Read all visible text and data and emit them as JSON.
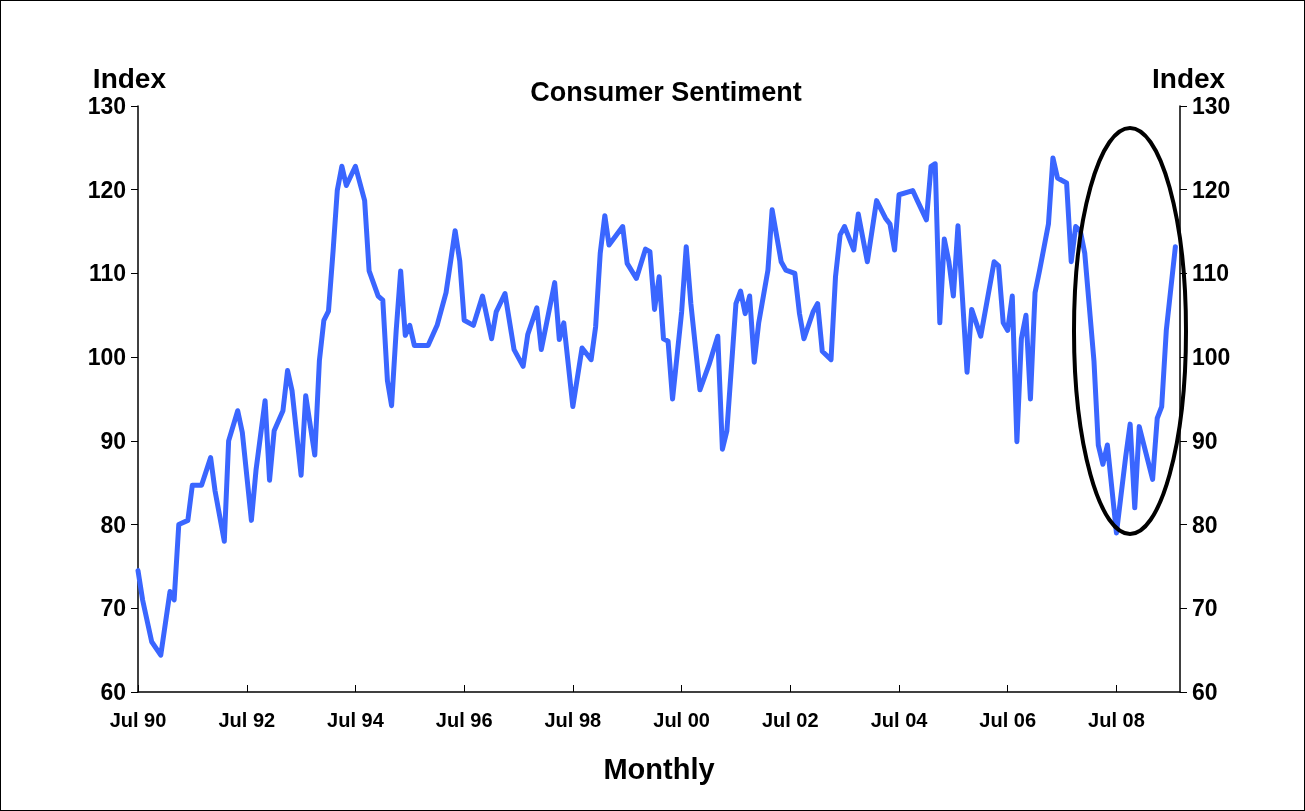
{
  "chart_data": {
    "type": "line",
    "title": "Consumer Sentiment",
    "xlabel": "Monthly",
    "ylabel": "Index",
    "y2label": "Index",
    "x": [
      "1990-07",
      "1990-08",
      "1990-10",
      "1990-12",
      "1991-02",
      "1991-03",
      "1991-04",
      "1991-06",
      "1991-07",
      "1991-09",
      "1991-11",
      "1991-12",
      "1992-02",
      "1992-03",
      "1992-05",
      "1992-06",
      "1992-08",
      "1992-09",
      "1992-11",
      "1992-12",
      "1993-01",
      "1993-03",
      "1993-04",
      "1993-05",
      "1993-07",
      "1993-08",
      "1993-10",
      "1993-11",
      "1993-12",
      "1994-01",
      "1994-02",
      "1994-03",
      "1994-04",
      "1994-05",
      "1994-07",
      "1994-09",
      "1994-10",
      "1994-12",
      "1995-01",
      "1995-02",
      "1995-03",
      "1995-04",
      "1995-05",
      "1995-06",
      "1995-07",
      "1995-08",
      "1995-11",
      "1996-01",
      "1996-03",
      "1996-05",
      "1996-06",
      "1996-07",
      "1996-09",
      "1996-11",
      "1997-01",
      "1997-02",
      "1997-04",
      "1997-06",
      "1997-08",
      "1997-09",
      "1997-11",
      "1997-12",
      "1998-03",
      "1998-04",
      "1998-05",
      "1998-07",
      "1998-09",
      "1998-11",
      "1998-12",
      "1999-01",
      "1999-02",
      "1999-03",
      "1999-06",
      "1999-07",
      "1999-09",
      "1999-11",
      "1999-12",
      "2000-01",
      "2000-02",
      "2000-03",
      "2000-04",
      "2000-05",
      "2000-07",
      "2000-08",
      "2000-09",
      "2000-11",
      "2001-01",
      "2001-03",
      "2001-04",
      "2001-05",
      "2001-07",
      "2001-08",
      "2001-09",
      "2001-10",
      "2001-11",
      "2001-12",
      "2002-02",
      "2002-03",
      "2002-05",
      "2002-06",
      "2002-08",
      "2002-09",
      "2002-10",
      "2002-12",
      "2003-01",
      "2003-02",
      "2003-04",
      "2003-05",
      "2003-06",
      "2003-07",
      "2003-09",
      "2003-10",
      "2003-12",
      "2004-02",
      "2004-04",
      "2004-05",
      "2004-06",
      "2004-07",
      "2004-10",
      "2004-11",
      "2005-01",
      "2005-02",
      "2005-03",
      "2005-04",
      "2005-05",
      "2005-06",
      "2005-07",
      "2005-08",
      "2005-10",
      "2005-11",
      "2006-01",
      "2006-04",
      "2006-05",
      "2006-06",
      "2006-07",
      "2006-08",
      "2006-09",
      "2006-10",
      "2006-11",
      "2006-12",
      "2007-01",
      "2007-02",
      "2007-04",
      "2007-05",
      "2007-06",
      "2007-08",
      "2007-09",
      "2007-10",
      "2007-11",
      "2007-12",
      "2008-02",
      "2008-03",
      "2008-04",
      "2008-05",
      "2008-07",
      "2008-09",
      "2008-10",
      "2008-11",
      "2008-12",
      "2009-03",
      "2009-04",
      "2009-05",
      "2009-06",
      "2009-08"
    ],
    "series": [
      {
        "color": "#3a66ff",
        "values": [
          74.5,
          71,
          66,
          64.4,
          72,
          71,
          80,
          80.5,
          84.7,
          84.7,
          88,
          84,
          78,
          90,
          93.6,
          91,
          80.5,
          86.5,
          94.8,
          85.3,
          91.2,
          93.6,
          98.4,
          96,
          85.9,
          95.4,
          88.3,
          99.6,
          104.4,
          105.5,
          112.7,
          119.9,
          122.8,
          120.5,
          122.8,
          118.7,
          110.3,
          107.3,
          106.8,
          97.2,
          94.2,
          103.2,
          110.3,
          102.6,
          103.8,
          101.4,
          101.4,
          103.8,
          107.7,
          115.1,
          111.5,
          104.4,
          103.8,
          107.3,
          102.2,
          105.4,
          107.6,
          100.9,
          98.9,
          102.7,
          105.9,
          100.9,
          108.9,
          102.1,
          104.1,
          94.1,
          101.1,
          99.7,
          103.6,
          112.4,
          116.9,
          113.4,
          115.6,
          111.2,
          109.4,
          112.9,
          112.6,
          105.7,
          109.6,
          102.2,
          101.9,
          95,
          105.4,
          113.2,
          106.4,
          96.1,
          99.1,
          102.5,
          89,
          91.2,
          106.4,
          107.9,
          105.2,
          107.3,
          99.4,
          104.1,
          110.4,
          117.6,
          111.4,
          110.4,
          110,
          105.2,
          102.2,
          105.4,
          106.4,
          100.7,
          99.7,
          109.6,
          114.6,
          115.6,
          112.8,
          117.1,
          111.4,
          118.7,
          116.6,
          115.9,
          112.8,
          119.4,
          119.9,
          118.7,
          116.4,
          122.8,
          123.1,
          104.1,
          114.1,
          111.4,
          107.3,
          115.7,
          98.2,
          105.7,
          102.5,
          111.4,
          110.9,
          104.1,
          103.2,
          107.3,
          89.9,
          102.2,
          105,
          95,
          107.7,
          110.4,
          115.9,
          123.8,
          121.4,
          120.8,
          111.4,
          115.6,
          115.1,
          112.4,
          99.5,
          89.5,
          87.2,
          89.5,
          79,
          88.1,
          92,
          82,
          91.7,
          85.4,
          92.7,
          94.1,
          103.2,
          113.2
        ]
      }
    ],
    "xlim": [
      "1990-07",
      "2009-09"
    ],
    "xticks": [
      {
        "value": "1990-07",
        "label": "Jul 90"
      },
      {
        "value": "1992-07",
        "label": "Jul 92"
      },
      {
        "value": "1994-07",
        "label": "Jul 94"
      },
      {
        "value": "1996-07",
        "label": "Jul 96"
      },
      {
        "value": "1998-07",
        "label": "Jul 98"
      },
      {
        "value": "2000-07",
        "label": "Jul 00"
      },
      {
        "value": "2002-07",
        "label": "Jul 02"
      },
      {
        "value": "2004-07",
        "label": "Jul 04"
      },
      {
        "value": "2006-07",
        "label": "Jul 06"
      },
      {
        "value": "2008-07",
        "label": "Jul 08"
      }
    ],
    "ylim": [
      60,
      130
    ],
    "yticks": [
      60,
      70,
      80,
      90,
      100,
      110,
      120,
      130
    ],
    "y2lim": [
      60,
      130
    ],
    "y2ticks": [
      60,
      70,
      80,
      90,
      100,
      110,
      120,
      130
    ],
    "grid": false,
    "marker": "none",
    "line_style": "solid"
  }
}
